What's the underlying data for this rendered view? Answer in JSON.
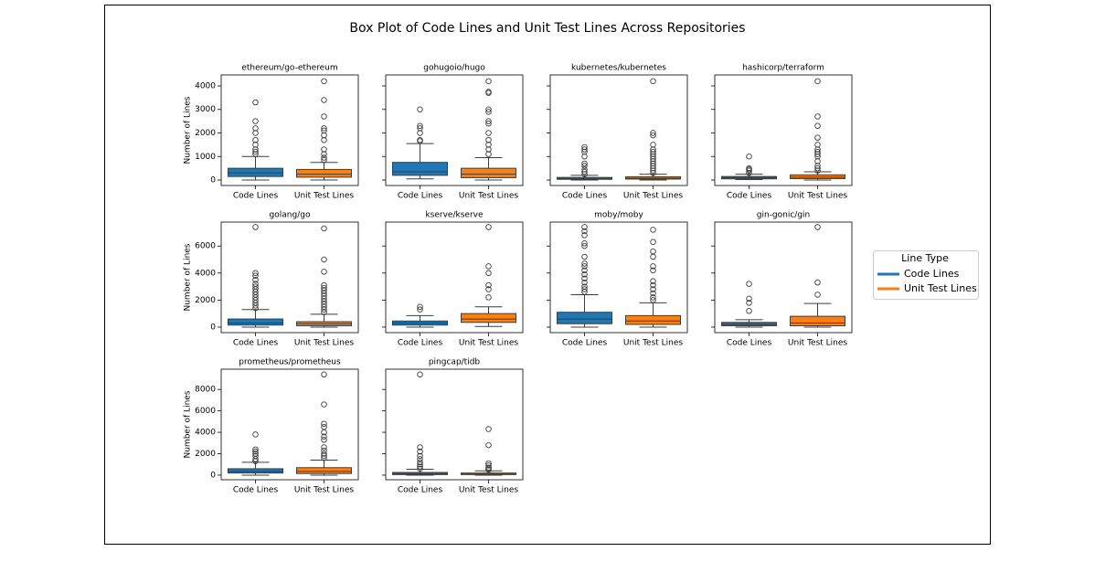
{
  "title": "Box Plot of Code Lines and Unit Test Lines Across Repositories",
  "legend": {
    "title": "Line Type",
    "items": [
      {
        "label": "Code Lines",
        "color": "#1f77b4"
      },
      {
        "label": "Unit Test Lines",
        "color": "#ff7f0e"
      }
    ]
  },
  "chart_data": [
    {
      "type": "box",
      "title": "ethereum/go-ethereum",
      "ylabel": "Number of Lines",
      "categories": [
        "Code Lines",
        "Unit Test Lines"
      ],
      "colors": [
        "#1f77b4",
        "#ff7f0e"
      ],
      "ylim": [
        -233,
        4466
      ],
      "yticks": [
        0,
        1000,
        2000,
        3000,
        4000
      ],
      "ytick_labels": true,
      "boxes": [
        {
          "whislo": 0,
          "q1": 150,
          "med": 300,
          "q3": 500,
          "whishi": 1000,
          "fliers": [
            1100,
            1200,
            1300,
            1500,
            1700,
            2000,
            2200,
            2500,
            3300
          ]
        },
        {
          "whislo": 0,
          "q1": 120,
          "med": 250,
          "q3": 450,
          "whishi": 750,
          "fliers": [
            850,
            950,
            1100,
            1300,
            1700,
            1900,
            2100,
            2200,
            2700,
            3400,
            4200
          ]
        }
      ]
    },
    {
      "type": "box",
      "title": "gohugoio/hugo",
      "categories": [
        "Code Lines",
        "Unit Test Lines"
      ],
      "colors": [
        "#1f77b4",
        "#ff7f0e"
      ],
      "ylim": [
        -233,
        4466
      ],
      "yticks": [
        0,
        1000,
        2000,
        3000,
        4000
      ],
      "ytick_labels": false,
      "boxes": [
        {
          "whislo": 50,
          "q1": 200,
          "med": 350,
          "q3": 750,
          "whishi": 1550,
          "fliers": [
            1650,
            1700,
            2000,
            2200,
            2300,
            3000
          ]
        },
        {
          "whislo": 0,
          "q1": 100,
          "med": 250,
          "q3": 500,
          "whishi": 950,
          "fliers": [
            1100,
            1300,
            1500,
            1700,
            2000,
            2400,
            2500,
            2900,
            3000,
            3700,
            3750,
            4200
          ]
        }
      ]
    },
    {
      "type": "box",
      "title": "kubernetes/kubernetes",
      "categories": [
        "Code Lines",
        "Unit Test Lines"
      ],
      "colors": [
        "#1f77b4",
        "#ff7f0e"
      ],
      "ylim": [
        -233,
        4466
      ],
      "yticks": [
        0,
        1000,
        2000,
        3000,
        4000
      ],
      "ytick_labels": false,
      "boxes": [
        {
          "whislo": 0,
          "q1": 30,
          "med": 70,
          "q3": 110,
          "whishi": 200,
          "fliers": [
            250,
            350,
            450,
            600,
            700,
            1000,
            1200,
            1300,
            1400
          ]
        },
        {
          "whislo": 0,
          "q1": 40,
          "med": 80,
          "q3": 140,
          "whishi": 250,
          "fliers": [
            300,
            400,
            500,
            600,
            700,
            800,
            900,
            1000,
            1100,
            1200,
            1300,
            1500,
            1900,
            2000,
            4200
          ]
        }
      ]
    },
    {
      "type": "box",
      "title": "hashicorp/terraform",
      "categories": [
        "Code Lines",
        "Unit Test Lines"
      ],
      "colors": [
        "#1f77b4",
        "#ff7f0e"
      ],
      "ylim": [
        -233,
        4466
      ],
      "yticks": [
        0,
        1000,
        2000,
        3000,
        4000
      ],
      "ytick_labels": false,
      "boxes": [
        {
          "whislo": 20,
          "q1": 50,
          "med": 100,
          "q3": 150,
          "whishi": 250,
          "fliers": [
            300,
            400,
            450,
            500,
            1000
          ]
        },
        {
          "whislo": 0,
          "q1": 60,
          "med": 120,
          "q3": 220,
          "whishi": 350,
          "fliers": [
            400,
            500,
            600,
            800,
            1000,
            1100,
            1200,
            1300,
            1500,
            1800,
            2300,
            2700,
            4200
          ]
        }
      ]
    },
    {
      "type": "box",
      "title": "golang/go",
      "ylabel": "Number of Lines",
      "categories": [
        "Code Lines",
        "Unit Test Lines"
      ],
      "colors": [
        "#1f77b4",
        "#ff7f0e"
      ],
      "ylim": [
        -409,
        7773
      ],
      "yticks": [
        0,
        2000,
        4000,
        6000
      ],
      "ytick_labels": true,
      "boxes": [
        {
          "whislo": 0,
          "q1": 150,
          "med": 300,
          "q3": 600,
          "whishi": 1300,
          "fliers": [
            1400,
            1600,
            1800,
            2000,
            2200,
            2400,
            2600,
            2800,
            3000,
            3200,
            3500,
            3800,
            4000,
            7400
          ]
        },
        {
          "whislo": 0,
          "q1": 100,
          "med": 250,
          "q3": 400,
          "whishi": 950,
          "fliers": [
            1100,
            1300,
            1500,
            1700,
            1900,
            2100,
            2300,
            2500,
            2700,
            2900,
            3100,
            4100,
            5000,
            7300
          ]
        }
      ]
    },
    {
      "type": "box",
      "title": "kserve/kserve",
      "categories": [
        "Code Lines",
        "Unit Test Lines"
      ],
      "colors": [
        "#1f77b4",
        "#ff7f0e"
      ],
      "ylim": [
        -409,
        7773
      ],
      "yticks": [
        0,
        2000,
        4000,
        6000
      ],
      "ytick_labels": false,
      "boxes": [
        {
          "whislo": 0,
          "q1": 150,
          "med": 300,
          "q3": 450,
          "whishi": 850,
          "fliers": [
            1300,
            1500
          ]
        },
        {
          "whislo": 50,
          "q1": 350,
          "med": 600,
          "q3": 1000,
          "whishi": 1500,
          "fliers": [
            2200,
            2800,
            3100,
            4000,
            4500,
            7400
          ]
        }
      ]
    },
    {
      "type": "box",
      "title": "moby/moby",
      "categories": [
        "Code Lines",
        "Unit Test Lines"
      ],
      "colors": [
        "#1f77b4",
        "#ff7f0e"
      ],
      "ylim": [
        -409,
        7773
      ],
      "yticks": [
        0,
        2000,
        4000,
        6000
      ],
      "ytick_labels": false,
      "boxes": [
        {
          "whislo": 0,
          "q1": 250,
          "med": 600,
          "q3": 1100,
          "whishi": 2400,
          "fliers": [
            2600,
            2800,
            3000,
            3300,
            3600,
            3900,
            4200,
            4500,
            4700,
            5200,
            6000,
            6200,
            6800,
            7100,
            7400
          ]
        },
        {
          "whislo": 0,
          "q1": 200,
          "med": 450,
          "q3": 850,
          "whishi": 1800,
          "fliers": [
            2000,
            2200,
            2500,
            2800,
            3100,
            3400,
            4200,
            4500,
            5200,
            5600,
            6300,
            7200
          ]
        }
      ]
    },
    {
      "type": "box",
      "title": "gin-gonic/gin",
      "categories": [
        "Code Lines",
        "Unit Test Lines"
      ],
      "colors": [
        "#1f77b4",
        "#ff7f0e"
      ],
      "ylim": [
        -409,
        7773
      ],
      "yticks": [
        0,
        2000,
        4000,
        6000
      ],
      "ytick_labels": false,
      "boxes": [
        {
          "whislo": 0,
          "q1": 100,
          "med": 200,
          "q3": 350,
          "whishi": 550,
          "fliers": [
            1200,
            1800,
            2100,
            3200
          ]
        },
        {
          "whislo": 0,
          "q1": 100,
          "med": 300,
          "q3": 800,
          "whishi": 1750,
          "fliers": [
            2400,
            3300,
            7400
          ]
        }
      ]
    },
    {
      "type": "box",
      "title": "prometheus/prometheus",
      "ylabel": "Number of Lines",
      "categories": [
        "Code Lines",
        "Unit Test Lines"
      ],
      "colors": [
        "#1f77b4",
        "#ff7f0e"
      ],
      "ylim": [
        -430,
        9892
      ],
      "yticks": [
        0,
        2000,
        4000,
        6000,
        8000
      ],
      "ytick_labels": true,
      "boxes": [
        {
          "whislo": 0,
          "q1": 200,
          "med": 350,
          "q3": 600,
          "whishi": 1200,
          "fliers": [
            1300,
            1500,
            1800,
            2000,
            2200,
            2400,
            3800
          ]
        },
        {
          "whislo": 0,
          "q1": 150,
          "med": 350,
          "q3": 700,
          "whishi": 1400,
          "fliers": [
            1600,
            1800,
            2000,
            2300,
            2600,
            3300,
            3600,
            4000,
            4500,
            4800,
            6600,
            9400
          ]
        }
      ]
    },
    {
      "type": "box",
      "title": "pingcap/tidb",
      "categories": [
        "Code Lines",
        "Unit Test Lines"
      ],
      "colors": [
        "#1f77b4",
        "#ff7f0e"
      ],
      "ylim": [
        -430,
        9892
      ],
      "yticks": [
        0,
        2000,
        4000,
        6000,
        8000
      ],
      "ytick_labels": false,
      "boxes": [
        {
          "whislo": 0,
          "q1": 50,
          "med": 150,
          "q3": 250,
          "whishi": 550,
          "fliers": [
            600,
            800,
            1000,
            1200,
            1500,
            1800,
            2200,
            2600,
            9400
          ]
        },
        {
          "whislo": 0,
          "q1": 50,
          "med": 100,
          "q3": 200,
          "whishi": 400,
          "fliers": [
            500,
            600,
            700,
            900,
            1100,
            2800,
            4300
          ]
        }
      ]
    }
  ]
}
